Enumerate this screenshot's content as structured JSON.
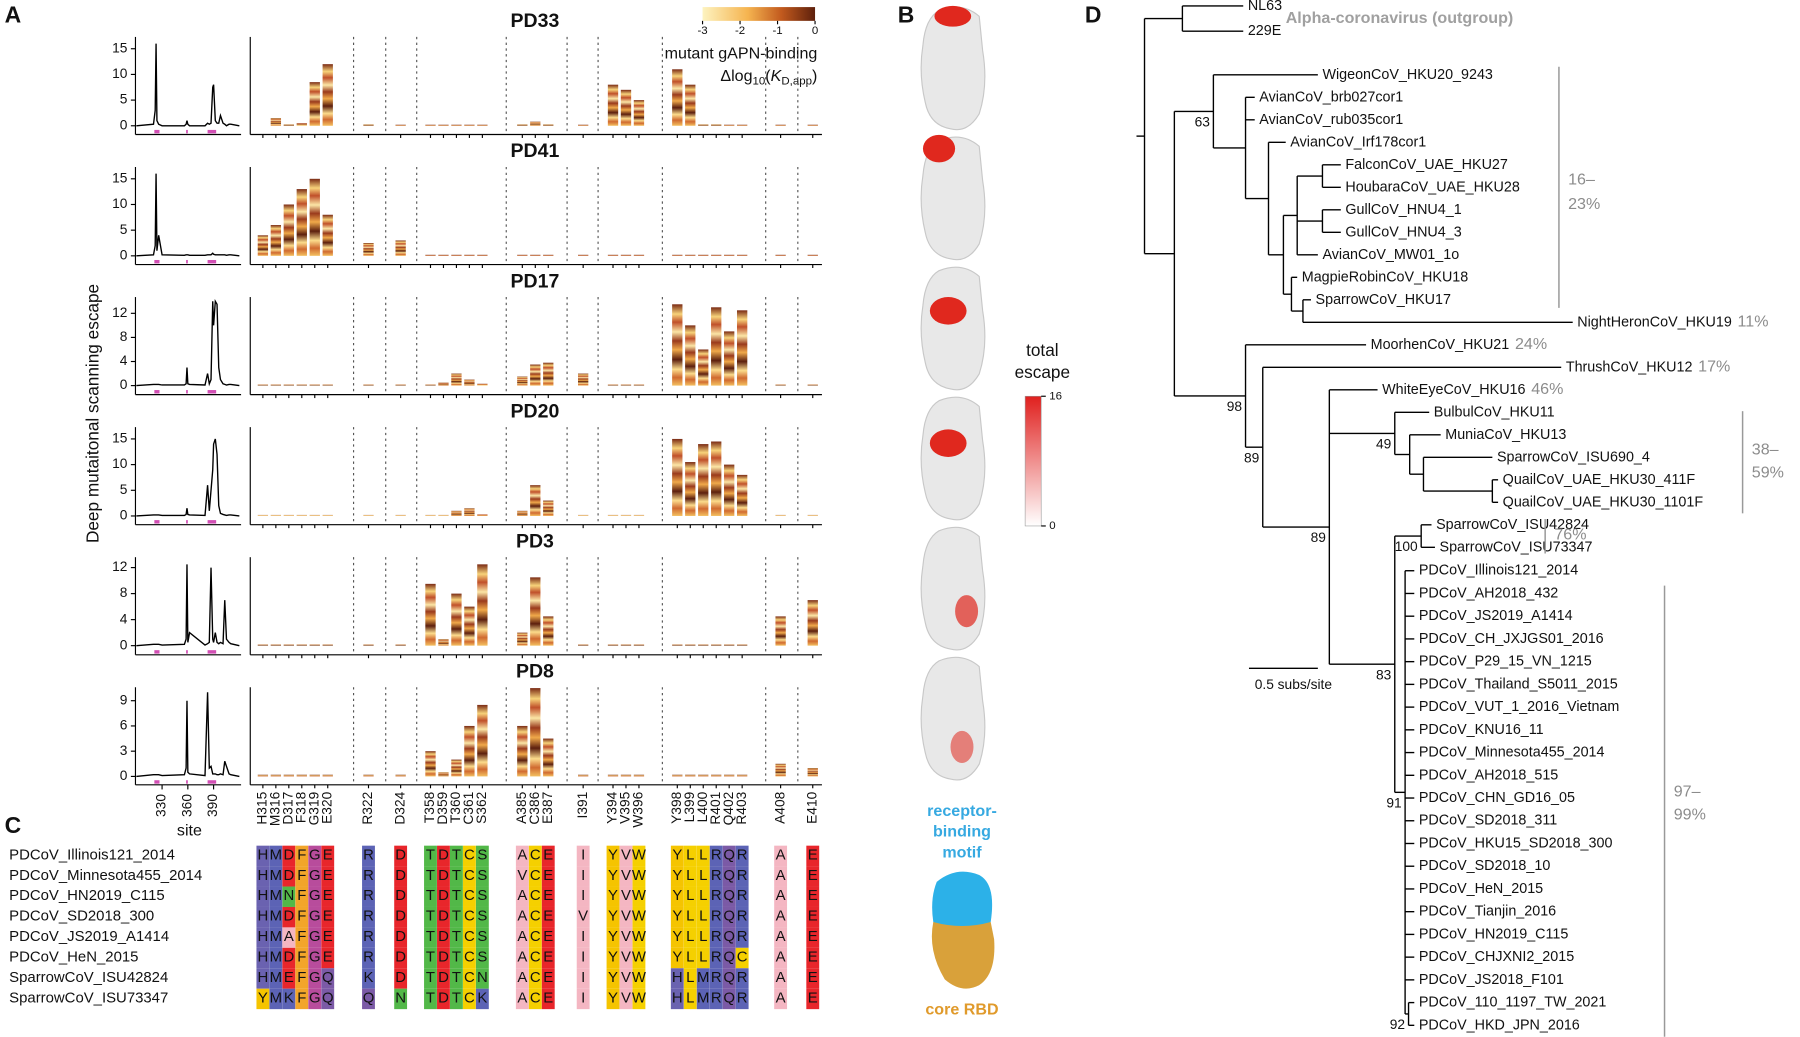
{
  "panel_labels": [
    "A",
    "B",
    "C",
    "D"
  ],
  "axes": {
    "ylabel": "Deep mutaitonal scanning escape",
    "xlabel": "site"
  },
  "sites": [
    "H315",
    "M316",
    "D317",
    "F318",
    "G319",
    "E320",
    "R322",
    "D324",
    "T358",
    "D359",
    "T360",
    "C361",
    "S362",
    "A385",
    "C386",
    "E387",
    "I391",
    "Y394",
    "V395",
    "W396",
    "Y398",
    "L399",
    "L400",
    "R401",
    "Q402",
    "R403",
    "A408",
    "E410"
  ],
  "chart_data": [
    {
      "type": "line",
      "title": "PD33",
      "color": "#000000",
      "xlim": [
        299,
        422
      ],
      "ylim": [
        -1.7,
        17.3
      ],
      "yticks": [
        0,
        5,
        10,
        15
      ],
      "x": [
        300,
        320,
        322,
        323,
        324,
        326,
        330,
        356,
        358,
        359,
        360,
        362,
        380,
        383,
        385,
        387,
        389,
        390,
        392,
        394,
        396,
        398,
        401,
        403,
        405,
        408,
        410,
        420
      ],
      "values": [
        0,
        0.3,
        3,
        16,
        1,
        0.3,
        0,
        0,
        0.3,
        1,
        0.3,
        0,
        0,
        0.5,
        0.3,
        0.5,
        7.5,
        8,
        1,
        0.5,
        0.5,
        2,
        0.5,
        0.3,
        0,
        0.3,
        0.3,
        0
      ],
      "site_escape": [
        0,
        1.5,
        0.3,
        0.5,
        8.5,
        12,
        0.3,
        0.2,
        0.2,
        0.2,
        0.2,
        0.2,
        0.2,
        0.3,
        0.8,
        0.3,
        0.2,
        8,
        7,
        5,
        11,
        8,
        0.3,
        0.3,
        0.2,
        0.2,
        0.2,
        0.2
      ]
    },
    {
      "type": "line",
      "title": "PD41",
      "color": "#000000",
      "xlim": [
        299,
        422
      ],
      "ylim": [
        -1.7,
        17.3
      ],
      "yticks": [
        0,
        5,
        10,
        15
      ],
      "x": [
        300,
        320,
        322,
        323,
        324,
        326,
        330,
        356,
        358,
        359,
        360,
        362,
        380,
        383,
        385,
        387,
        389,
        390,
        392,
        394,
        396,
        398,
        401,
        403,
        405,
        408,
        410,
        420
      ],
      "values": [
        0,
        0.2,
        2,
        16,
        1,
        4,
        0.2,
        0.1,
        0.2,
        0.2,
        0.2,
        0.1,
        0.1,
        0.2,
        0.2,
        0.2,
        0.5,
        0.3,
        0.2,
        0.2,
        0.2,
        0.2,
        0.2,
        0.2,
        0.1,
        0.2,
        0.2,
        0
      ],
      "site_escape": [
        4,
        6,
        10,
        13,
        15,
        8,
        2.5,
        3,
        0.2,
        0.2,
        0.2,
        0.2,
        0.2,
        0.2,
        0.2,
        0.2,
        0.2,
        0.2,
        0.2,
        0.2,
        0.2,
        0.2,
        0.2,
        0.2,
        0.2,
        0.2,
        0.2,
        0.2
      ]
    },
    {
      "type": "line",
      "title": "PD17",
      "color": "#000000",
      "xlim": [
        299,
        422
      ],
      "ylim": [
        -1.5,
        14.7
      ],
      "yticks": [
        0,
        4,
        8,
        12
      ],
      "x": [
        300,
        320,
        322,
        323,
        324,
        326,
        330,
        356,
        358,
        359,
        360,
        362,
        380,
        383,
        385,
        387,
        389,
        390,
        392,
        394,
        396,
        398,
        401,
        403,
        405,
        408,
        410,
        420
      ],
      "values": [
        0,
        0.2,
        0.2,
        0.2,
        0.2,
        0.2,
        0.1,
        0.1,
        0.3,
        3,
        0.3,
        0.2,
        0.1,
        2,
        0.3,
        1,
        14,
        10,
        14,
        13.5,
        3,
        1,
        0.3,
        0.2,
        0.1,
        0.2,
        0.2,
        0
      ],
      "site_escape": [
        0.2,
        0.2,
        0.2,
        0.2,
        0.2,
        0.2,
        0.2,
        0.2,
        0.2,
        0.5,
        2,
        1,
        0.3,
        1.5,
        3.5,
        3.8,
        2,
        0.2,
        0.2,
        0.2,
        13.5,
        10,
        6,
        13,
        9,
        12.5,
        0.2,
        0.2
      ]
    },
    {
      "type": "line",
      "title": "PD20",
      "color": "#000000",
      "xlim": [
        299,
        422
      ],
      "ylim": [
        -1.7,
        17.3
      ],
      "yticks": [
        0,
        5,
        10,
        15
      ],
      "x": [
        300,
        320,
        322,
        323,
        324,
        326,
        330,
        356,
        358,
        359,
        360,
        362,
        380,
        383,
        385,
        387,
        389,
        390,
        392,
        394,
        396,
        398,
        401,
        403,
        405,
        408,
        410,
        420
      ],
      "values": [
        0,
        0.2,
        0.2,
        0.2,
        0.2,
        0.2,
        0.1,
        0.1,
        0.3,
        1.5,
        0.3,
        0.2,
        0.1,
        6,
        1,
        5,
        9,
        14,
        15,
        12,
        2,
        0.5,
        0.3,
        0.2,
        0.1,
        0.2,
        0.2,
        0
      ],
      "site_escape": [
        0.2,
        0.2,
        0.2,
        0.2,
        0.2,
        0.2,
        0.2,
        0.2,
        0.2,
        0.2,
        1,
        1.5,
        0.3,
        1,
        6,
        3,
        0.2,
        0.2,
        0.2,
        0.2,
        15,
        10.5,
        14,
        14.5,
        10,
        8,
        0.2,
        0.2
      ]
    },
    {
      "type": "line",
      "title": "PD3",
      "color": "#000000",
      "xlim": [
        299,
        422
      ],
      "ylim": [
        -1.4,
        13.6
      ],
      "yticks": [
        0,
        4,
        8,
        12
      ],
      "x": [
        300,
        320,
        322,
        323,
        324,
        326,
        330,
        356,
        358,
        359,
        360,
        362,
        380,
        383,
        385,
        387,
        389,
        390,
        392,
        394,
        396,
        398,
        401,
        403,
        405,
        408,
        410,
        420
      ],
      "values": [
        0,
        0.2,
        0.2,
        0.2,
        0.2,
        0.2,
        0.1,
        0.2,
        1,
        12.5,
        0.5,
        2,
        0.1,
        0.3,
        0.5,
        12,
        1,
        0.5,
        2,
        0.5,
        0.3,
        0.5,
        0.3,
        7,
        1,
        0.5,
        0.3,
        0
      ],
      "site_escape": [
        0.2,
        0.2,
        0.2,
        0.2,
        0.2,
        0.2,
        0.2,
        0.2,
        9.5,
        1,
        8,
        6,
        12.5,
        2,
        10.5,
        4.5,
        0.2,
        0.2,
        0.2,
        0.2,
        0.2,
        0.2,
        0.2,
        0.2,
        0.2,
        0.2,
        4.5,
        7
      ]
    },
    {
      "type": "line",
      "title": "PD8",
      "color": "#000000",
      "xlim": [
        299,
        422
      ],
      "ylim": [
        -1,
        10.6
      ],
      "yticks": [
        0,
        3,
        6,
        9
      ],
      "xticks": [
        330,
        360,
        390
      ],
      "x": [
        300,
        320,
        322,
        323,
        324,
        326,
        330,
        356,
        358,
        359,
        360,
        362,
        380,
        383,
        385,
        387,
        389,
        390,
        392,
        394,
        396,
        398,
        401,
        403,
        405,
        408,
        410,
        420
      ],
      "values": [
        0,
        0.2,
        0.2,
        0.2,
        0.2,
        0.2,
        0.1,
        0.2,
        1,
        9,
        0.5,
        0.3,
        0.1,
        10,
        1,
        1.2,
        0.3,
        0.3,
        0.3,
        0.2,
        0.2,
        0.3,
        0.2,
        1.8,
        1.2,
        0.3,
        0.2,
        0
      ],
      "site_escape": [
        0.2,
        0.2,
        0.2,
        0.2,
        0.2,
        0.2,
        0.2,
        0.2,
        3,
        0.5,
        2,
        6,
        8.5,
        6,
        10.5,
        4.5,
        0.2,
        0.2,
        0.2,
        0.2,
        0.2,
        0.2,
        0.2,
        0.2,
        0.2,
        0.2,
        1.5,
        1
      ]
    }
  ],
  "binding_legend": {
    "title": "mutant gAPN-binding",
    "label": [
      "Δlog",
      "10",
      "(",
      "K",
      "D,app",
      ")"
    ],
    "lim": [
      -3,
      0
    ],
    "ticks": [
      -3,
      -2,
      -1,
      0
    ]
  },
  "escape_legend": {
    "title": [
      "total",
      "escape"
    ],
    "lim": [
      0,
      16
    ],
    "ticks": [
      0,
      16
    ]
  },
  "rbd_legend": {
    "motif": [
      "receptor-",
      "binding",
      "motif"
    ],
    "core": "core RBD"
  },
  "alignment": {
    "rows": [
      {
        "name": "PDCoV_Illinois121_2014",
        "residues": [
          "H",
          "M",
          "D",
          "F",
          "G",
          "E",
          "R",
          "D",
          "T",
          "D",
          "T",
          "C",
          "S",
          "A",
          "C",
          "E",
          "I",
          "Y",
          "V",
          "W",
          "Y",
          "L",
          "L",
          "R",
          "Q",
          "R",
          "A",
          "E"
        ]
      },
      {
        "name": "PDCoV_Minnesota455_2014",
        "residues": [
          "H",
          "M",
          "D",
          "F",
          "G",
          "E",
          "R",
          "D",
          "T",
          "D",
          "T",
          "C",
          "S",
          "V",
          "C",
          "E",
          "I",
          "Y",
          "V",
          "W",
          "Y",
          "L",
          "L",
          "R",
          "Q",
          "R",
          "A",
          "E"
        ]
      },
      {
        "name": "PDCoV_HN2019_C115",
        "residues": [
          "H",
          "M",
          "N",
          "F",
          "G",
          "E",
          "R",
          "D",
          "T",
          "D",
          "T",
          "C",
          "S",
          "A",
          "C",
          "E",
          "I",
          "Y",
          "V",
          "W",
          "Y",
          "L",
          "L",
          "R",
          "Q",
          "R",
          "A",
          "E"
        ]
      },
      {
        "name": "PDCoV_SD2018_300",
        "residues": [
          "H",
          "M",
          "D",
          "F",
          "G",
          "E",
          "R",
          "D",
          "T",
          "D",
          "T",
          "C",
          "S",
          "A",
          "C",
          "E",
          "V",
          "Y",
          "V",
          "W",
          "Y",
          "L",
          "L",
          "R",
          "Q",
          "R",
          "A",
          "E"
        ]
      },
      {
        "name": "PDCoV_JS2019_A1414",
        "residues": [
          "H",
          "M",
          "A",
          "F",
          "G",
          "E",
          "R",
          "D",
          "T",
          "D",
          "T",
          "C",
          "S",
          "A",
          "C",
          "E",
          "I",
          "Y",
          "V",
          "W",
          "Y",
          "L",
          "L",
          "R",
          "Q",
          "R",
          "A",
          "E"
        ]
      },
      {
        "name": "PDCoV_HeN_2015",
        "residues": [
          "H",
          "M",
          "D",
          "F",
          "G",
          "E",
          "R",
          "D",
          "T",
          "D",
          "T",
          "C",
          "S",
          "A",
          "C",
          "E",
          "I",
          "Y",
          "V",
          "W",
          "Y",
          "L",
          "L",
          "R",
          "Q",
          "C",
          "A",
          "E"
        ]
      },
      {
        "name": "SparrowCoV_ISU42824",
        "residues": [
          "H",
          "M",
          "E",
          "F",
          "G",
          "Q",
          "K",
          "D",
          "T",
          "D",
          "T",
          "C",
          "N",
          "A",
          "C",
          "E",
          "I",
          "Y",
          "V",
          "W",
          "H",
          "L",
          "M",
          "R",
          "Q",
          "R",
          "A",
          "E"
        ]
      },
      {
        "name": "SparrowCoV_ISU73347",
        "residues": [
          "Y",
          "M",
          "K",
          "F",
          "G",
          "Q",
          "Q",
          "N",
          "T",
          "D",
          "T",
          "C",
          "K",
          "A",
          "C",
          "E",
          "I",
          "Y",
          "V",
          "W",
          "H",
          "L",
          "M",
          "R",
          "Q",
          "R",
          "A",
          "E"
        ]
      }
    ]
  },
  "tree": {
    "outgroup_label": "Alpha-coronavirus (outgroup)",
    "leaves": [
      {
        "name": "NL63"
      },
      {
        "name": "229E"
      },
      {
        "name": "WigeonCoV_HKU20_9243"
      },
      {
        "name": "AvianCoV_brb027cor1"
      },
      {
        "name": "AvianCoV_rub035cor1"
      },
      {
        "name": "AvianCoV_Irf178cor1"
      },
      {
        "name": "FalconCoV_UAE_HKU27"
      },
      {
        "name": "HoubaraCoV_UAE_HKU28"
      },
      {
        "name": "GullCoV_HNU4_1"
      },
      {
        "name": "GullCoV_HNU4_3"
      },
      {
        "name": "AvianCoV_MW01_1o"
      },
      {
        "name": "MagpieRobinCoV_HKU18"
      },
      {
        "name": "SparrowCoV_HKU17"
      },
      {
        "name": "NightHeronCoV_HKU19",
        "pct": "11%"
      },
      {
        "name": "MoorhenCoV_HKU21",
        "pct": "24%"
      },
      {
        "name": "ThrushCoV_HKU12",
        "pct": "17%"
      },
      {
        "name": "WhiteEyeCoV_HKU16",
        "pct": "46%"
      },
      {
        "name": "BulbulCoV_HKU11"
      },
      {
        "name": "MuniaCoV_HKU13"
      },
      {
        "name": "SparrowCoV_ISU690_4"
      },
      {
        "name": "QuailCoV_UAE_HKU30_411F"
      },
      {
        "name": "QuailCoV_UAE_HKU30_1101F"
      },
      {
        "name": "SparrowCoV_ISU42824"
      },
      {
        "name": "SparrowCoV_ISU73347"
      },
      {
        "name": "PDCoV_Illinois121_2014"
      },
      {
        "name": "PDCoV_AH2018_432"
      },
      {
        "name": "PDCoV_JS2019_A1414"
      },
      {
        "name": "PDCoV_CH_JXJGS01_2016"
      },
      {
        "name": "PDCoV_P29_15_VN_1215"
      },
      {
        "name": "PDCoV_Thailand_S5011_2015"
      },
      {
        "name": "PDCoV_VUT_1_2016_Vietnam"
      },
      {
        "name": "PDCoV_KNU16_11"
      },
      {
        "name": "PDCoV_Minnesota455_2014"
      },
      {
        "name": "PDCoV_AH2018_515"
      },
      {
        "name": "PDCoV_CHN_GD16_05"
      },
      {
        "name": "PDCoV_SD2018_311"
      },
      {
        "name": "PDCoV_HKU15_SD2018_300"
      },
      {
        "name": "PDCoV_SD2018_10"
      },
      {
        "name": "PDCoV_HeN_2015"
      },
      {
        "name": "PDCoV_Tianjin_2016"
      },
      {
        "name": "PDCoV_HN2019_C115"
      },
      {
        "name": "PDCoV_CHJXNI2_2015"
      },
      {
        "name": "PDCoV_JS2018_F101"
      },
      {
        "name": "PDCoV_110_1197_TW_2021"
      },
      {
        "name": "PDCoV_HKD_JPN_2016"
      }
    ],
    "support": [
      63,
      98,
      89,
      89,
      49,
      100,
      83,
      91,
      92
    ],
    "groups": [
      [
        "16–",
        "23%"
      ],
      [
        "38–",
        "59%"
      ],
      [
        "76%"
      ],
      [
        "97–",
        "99%"
      ]
    ],
    "scale": "0.5 subs/site"
  }
}
